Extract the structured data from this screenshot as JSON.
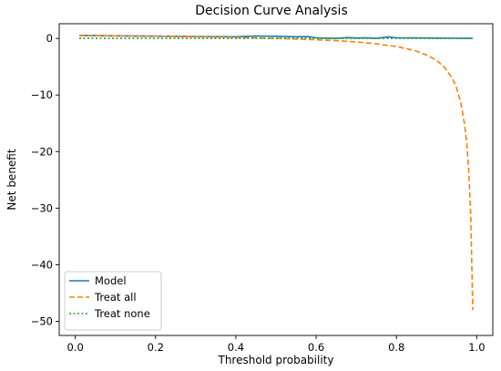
{
  "chart_data": {
    "type": "line",
    "title": "Decision Curve Analysis",
    "xlabel": "Threshold probability",
    "ylabel": "Net benefit",
    "xlim": [
      -0.04,
      1.04
    ],
    "ylim": [
      -52.5,
      2.6
    ],
    "xticks": [
      0.0,
      0.2,
      0.4,
      0.6,
      0.8,
      1.0
    ],
    "xtick_labels": [
      "0.0",
      "0.2",
      "0.4",
      "0.6",
      "0.8",
      "1.0"
    ],
    "yticks": [
      0,
      -10,
      -20,
      -30,
      -40,
      -50
    ],
    "ytick_labels": [
      "0",
      "−10",
      "−20",
      "−30",
      "−40",
      "−50"
    ],
    "grid": false,
    "legend_position": "lower-left",
    "series": [
      {
        "name": "Model",
        "color": "#1f77b4",
        "style": "solid",
        "x": [
          0.01,
          0.1,
          0.2,
          0.3,
          0.4,
          0.45,
          0.5,
          0.55,
          0.58,
          0.6,
          0.62,
          0.65,
          0.68,
          0.7,
          0.72,
          0.75,
          0.78,
          0.8,
          0.85,
          0.9,
          0.95,
          0.99
        ],
        "y": [
          0.52,
          0.45,
          0.4,
          0.35,
          0.3,
          0.42,
          0.38,
          0.3,
          0.32,
          0.1,
          0.05,
          0.0,
          0.15,
          0.05,
          0.12,
          0.0,
          0.28,
          0.1,
          0.08,
          0.05,
          0.03,
          0.0
        ]
      },
      {
        "name": "Treat all",
        "color": "#ff7f0e",
        "style": "dashed",
        "x": [
          0.01,
          0.1,
          0.2,
          0.3,
          0.4,
          0.5,
          0.55,
          0.6,
          0.65,
          0.7,
          0.75,
          0.8,
          0.83,
          0.85,
          0.88,
          0.9,
          0.92,
          0.94,
          0.95,
          0.96,
          0.97,
          0.975,
          0.98,
          0.985,
          0.99
        ],
        "y": [
          0.51,
          0.46,
          0.39,
          0.3,
          0.18,
          0.01,
          -0.1,
          -0.23,
          -0.4,
          -0.63,
          -0.96,
          -1.45,
          -1.88,
          -2.27,
          -3.09,
          -3.9,
          -5.13,
          -7.15,
          -8.8,
          -11.25,
          -15.33,
          -18.6,
          -23.5,
          -31.67,
          -48.0
        ]
      },
      {
        "name": "Treat none",
        "color": "#2ca02c",
        "style": "dotted",
        "x": [
          0.01,
          0.99
        ],
        "y": [
          0.0,
          0.0
        ]
      }
    ]
  }
}
